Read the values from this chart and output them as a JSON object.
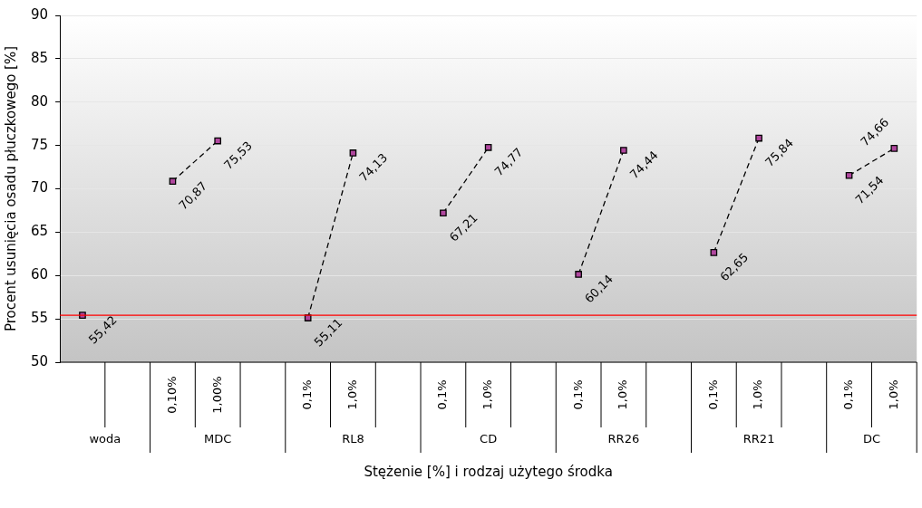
{
  "chart_data": {
    "type": "line",
    "xlabel": "Stężenie [%] i rodzaj użytego środka",
    "ylabel": "Procent usunięcia osadu płuczkowego [%]",
    "categories": [
      null,
      null,
      "0,10%",
      "1,00%",
      null,
      "0,1%",
      "1,0%",
      null,
      "0,1%",
      "1,0%",
      null,
      "0,1%",
      "1,0%",
      null,
      "0,1%",
      "1,0%",
      null,
      "0,1%",
      "1,0%"
    ],
    "annotations": [
      "woda",
      "MDC",
      "RL8",
      "CD",
      "RR26",
      "RR21",
      "DC"
    ],
    "series": [
      {
        "color": "#b0479e",
        "values": [
          55.42,
          null,
          70.87,
          75.53,
          null,
          55.11,
          74.13,
          null,
          67.21,
          74.77,
          null,
          60.14,
          74.44,
          null,
          62.65,
          75.84,
          null,
          71.54,
          74.66
        ],
        "value_labels": [
          "55,42",
          null,
          "70,87",
          "75,53",
          null,
          "55,11",
          "74,13",
          null,
          "67,21",
          "74,77",
          null,
          "60,14",
          "74,44",
          null,
          "62,65",
          "75,84",
          null,
          "71,54",
          "74,66"
        ]
      }
    ],
    "marker": "square",
    "line_style": "dashed",
    "ylim": [
      50,
      90
    ],
    "yticks": [
      50,
      55,
      60,
      65,
      70,
      75,
      80,
      85,
      90
    ],
    "grid": "y",
    "legend": false,
    "ref_lines": [
      {
        "axis": "y",
        "value": 55.42,
        "color": "#ff0000"
      }
    ]
  }
}
